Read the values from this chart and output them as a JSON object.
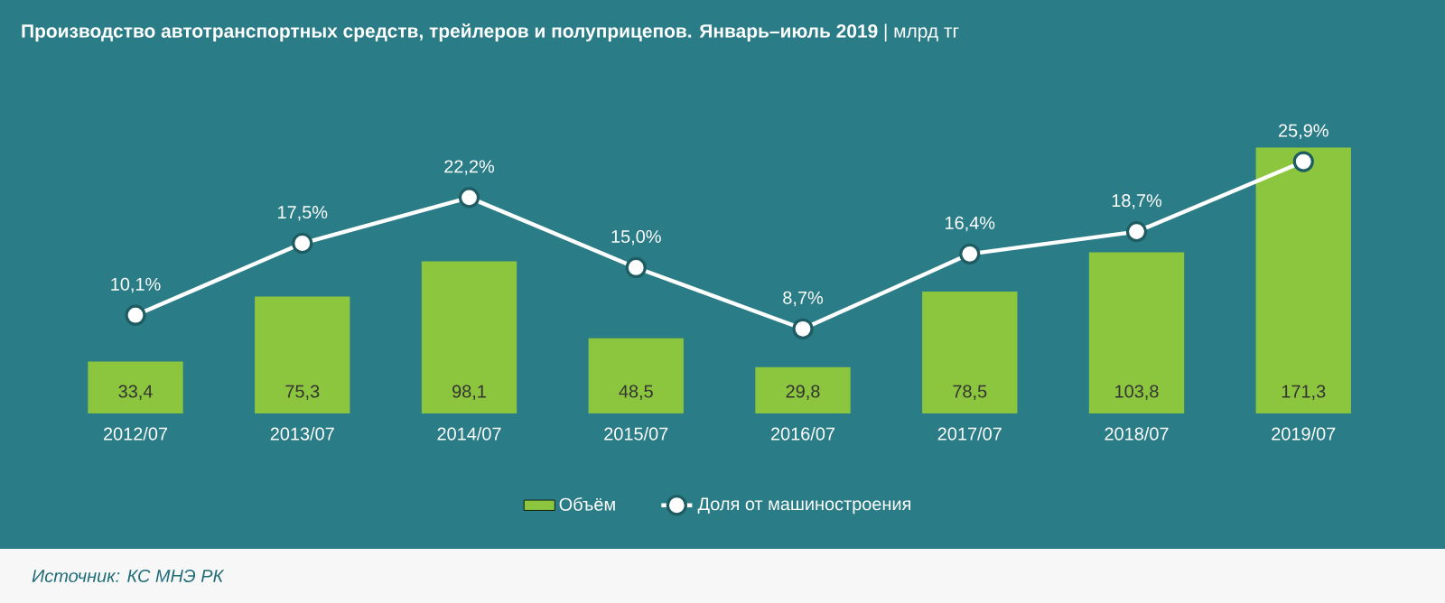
{
  "chart_data": {
    "type": "bar",
    "title": "**Производство автотранспортных  средств, трейлеров и полуприцепов. Январь–июль  2019** | млрд тг",
    "categories": [
      "2012/07",
      "2013/07",
      "2014/07",
      "2015/07",
      "2016/07",
      "2017/07",
      "2018/07",
      "2019/07"
    ],
    "series": [
      {
        "name": "Объём",
        "color": "#8cc63f",
        "values": [
          33.4,
          75.3,
          98.1,
          48.5,
          29.8,
          78.5,
          103.8,
          171.3
        ],
        "value_labels": [
          "33,4",
          "75,3",
          "98,1",
          "48,5",
          "29,8",
          "78,5",
          "103,8",
          "171,3"
        ]
      },
      {
        "name": "Доля от машиностроения",
        "type": "line",
        "axis": "y2",
        "color": "#ffffff",
        "marker": "circle",
        "values": [
          10.1,
          17.5,
          22.2,
          15.0,
          8.7,
          16.4,
          18.7,
          25.9
        ],
        "value_labels": [
          "10,1%",
          "17,5%",
          "22,2%",
          "15,0%",
          "8,7%",
          "16,4%",
          "18,7%",
          "25,9%"
        ]
      }
    ],
    "tick_labels": "x",
    "legend": "bottom",
    "annotations": [
      "Источник: КС МНЭ РК"
    ]
  }
}
